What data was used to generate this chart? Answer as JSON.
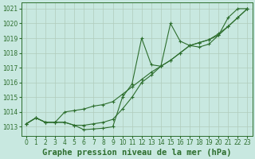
{
  "title": "Graphe pression niveau de la mer (hPa)",
  "background_color": "#c8e8e0",
  "grid_color": "#b0ccbb",
  "line_color": "#2d6e2d",
  "x_values": [
    0,
    1,
    2,
    3,
    4,
    5,
    6,
    7,
    8,
    9,
    10,
    11,
    12,
    13,
    14,
    15,
    16,
    17,
    18,
    19,
    20,
    21,
    22,
    23
  ],
  "series1": [
    1013.2,
    1013.6,
    1013.3,
    1013.3,
    1013.3,
    1013.1,
    1012.8,
    1012.85,
    1012.9,
    1013.0,
    1015.0,
    1015.9,
    1019.0,
    1017.2,
    1017.1,
    1020.0,
    1018.8,
    1018.5,
    1018.4,
    1018.6,
    1019.2,
    1020.4,
    1021.0,
    1021.0
  ],
  "series2": [
    1013.2,
    1013.6,
    1013.3,
    1013.3,
    1013.3,
    1013.1,
    1013.1,
    1013.2,
    1013.3,
    1013.5,
    1014.2,
    1015.0,
    1016.0,
    1016.5,
    1017.1,
    1017.5,
    1018.0,
    1018.5,
    1018.7,
    1018.9,
    1019.3,
    1019.8,
    1020.4,
    1021.0
  ],
  "series3": [
    1013.2,
    1013.6,
    1013.3,
    1013.3,
    1014.0,
    1014.1,
    1014.2,
    1014.4,
    1014.5,
    1014.7,
    1015.2,
    1015.7,
    1016.2,
    1016.7,
    1017.1,
    1017.5,
    1018.0,
    1018.5,
    1018.7,
    1018.9,
    1019.2,
    1019.8,
    1020.4,
    1021.0
  ],
  "ylim": [
    1012.4,
    1021.4
  ],
  "yticks": [
    1013,
    1014,
    1015,
    1016,
    1017,
    1018,
    1019,
    1020,
    1021
  ],
  "xlim": [
    -0.5,
    23.5
  ],
  "xticks": [
    0,
    1,
    2,
    3,
    4,
    5,
    6,
    7,
    8,
    9,
    10,
    11,
    12,
    13,
    14,
    15,
    16,
    17,
    18,
    19,
    20,
    21,
    22,
    23
  ],
  "title_fontsize": 7.5,
  "tick_fontsize": 5.5
}
